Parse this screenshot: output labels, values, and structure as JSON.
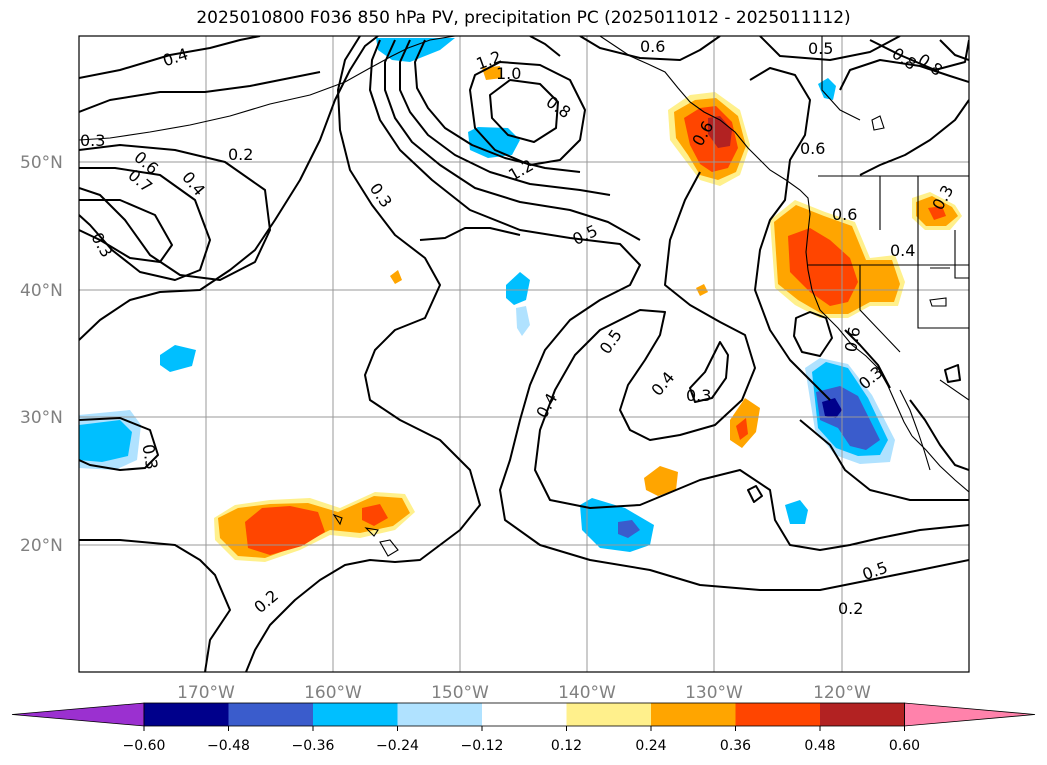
{
  "title": "2025010800 F036 850 hPa PV, precipitation PC (2025011012 - 2025011112)",
  "map": {
    "lat_labels": [
      "50°N",
      "40°N",
      "30°N",
      "20°N"
    ],
    "lon_labels": [
      "170°W",
      "160°W",
      "150°W",
      "140°W",
      "130°W",
      "120°W"
    ],
    "contour_labels": [
      "0.4",
      "0.3",
      "0.6",
      "0.7",
      "0.4",
      "0.3",
      "0.2",
      "1.2",
      "1.0",
      "0.8",
      "1.2",
      "0.3",
      "0.5",
      "0.6",
      "0.5",
      "0.6",
      "0.6",
      "0.4",
      "0.5",
      "0.4",
      "0.3",
      "0.4",
      "0.3",
      "0.3",
      "0.2",
      "0.5",
      "0.2",
      "0.8",
      "0.8",
      "0.6",
      "0.6",
      "0.3"
    ]
  },
  "colorbar": {
    "colors": [
      "#9b30d0",
      "#00008b",
      "#3a5ccc",
      "#00bfff",
      "#b0e2ff",
      "#ffffff",
      "#fff08c",
      "#ffa500",
      "#ff4500",
      "#b22222",
      "#ff82ab"
    ],
    "ticks": [
      "−0.60",
      "−0.48",
      "−0.36",
      "−0.24",
      "−0.12",
      "0.12",
      "0.24",
      "0.36",
      "0.48",
      "0.60"
    ]
  },
  "chart_data": {
    "type": "heatmap",
    "title": "2025010800 F036 850 hPa PV, precipitation PC (2025011012 - 2025011112)",
    "projection": "lat-lon",
    "lon_range": [
      -180,
      -110
    ],
    "lat_range": [
      10,
      60
    ],
    "lat_ticks": [
      50,
      40,
      30,
      20
    ],
    "lon_ticks": [
      -170,
      -160,
      -150,
      -140,
      -130,
      -120
    ],
    "grid": true,
    "colorbar": {
      "levels": [
        -0.6,
        -0.48,
        -0.36,
        -0.24,
        -0.12,
        0.12,
        0.24,
        0.36,
        0.48,
        0.6
      ],
      "extend": "both"
    }
  }
}
